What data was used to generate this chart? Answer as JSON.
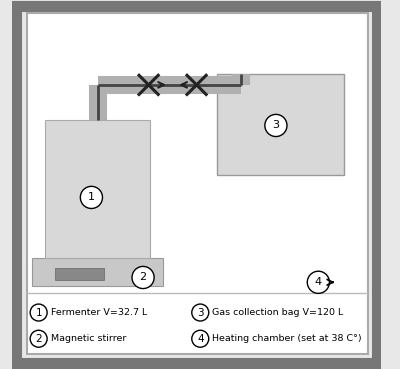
{
  "bg_color": "#e8e8e8",
  "inner_bg_color": "#ffffff",
  "fermenter_color": "#d8d8d8",
  "bag_color": "#d8d8d8",
  "stirrer_color": "#c8c8c8",
  "stirrer_bar_color": "#888888",
  "pipe_gray": "#b0b0b0",
  "pipe_dark": "#444444",
  "legend": [
    {
      "num": "1",
      "text": "Fermenter V=32.7 L"
    },
    {
      "num": "2",
      "text": "Magnetic stirrer"
    },
    {
      "num": "3",
      "text": "Gas collection bag V=120 L"
    },
    {
      "num": "4",
      "text": "Heating chamber (set at 38 C°)"
    }
  ]
}
